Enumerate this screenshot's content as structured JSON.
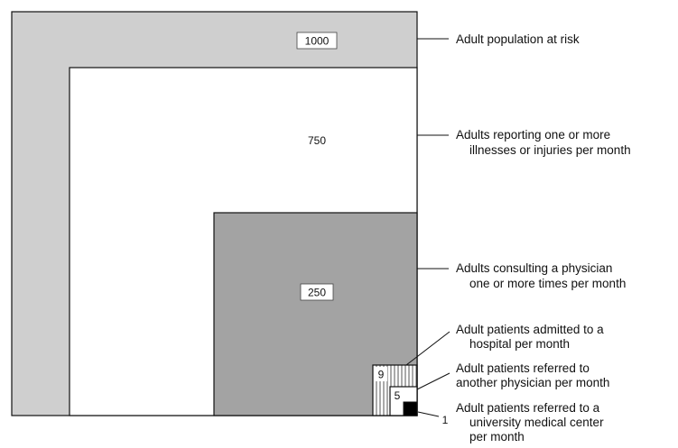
{
  "colors": {
    "population_fill": "#cfcfcf",
    "illness_fill": "#ffffff",
    "physician_fill": "#a3a3a3",
    "hospital_fill": "#ffffff",
    "hospital_hatch": "#555555",
    "referred_fill": "#ffffff",
    "university_fill": "#000000",
    "outline": "#111111"
  },
  "levels": [
    {
      "key": "population",
      "value": "1000",
      "label_lines": [
        "Adult population at risk"
      ]
    },
    {
      "key": "illness",
      "value": "750",
      "label_lines": [
        "Adults reporting one or more",
        "illnesses or injuries per month"
      ]
    },
    {
      "key": "physician",
      "value": "250",
      "label_lines": [
        "Adults consulting a physician",
        "one or more times per month"
      ]
    },
    {
      "key": "hospital",
      "value": "9",
      "label_lines": [
        "Adult patients admitted to a",
        "hospital per month"
      ]
    },
    {
      "key": "referred",
      "value": "5",
      "label_lines": [
        "Adult patients referred to",
        "another physician per month"
      ]
    },
    {
      "key": "university",
      "value": "1",
      "label_lines": [
        "Adult patients referred to a",
        "university medical center",
        "per month"
      ]
    }
  ]
}
